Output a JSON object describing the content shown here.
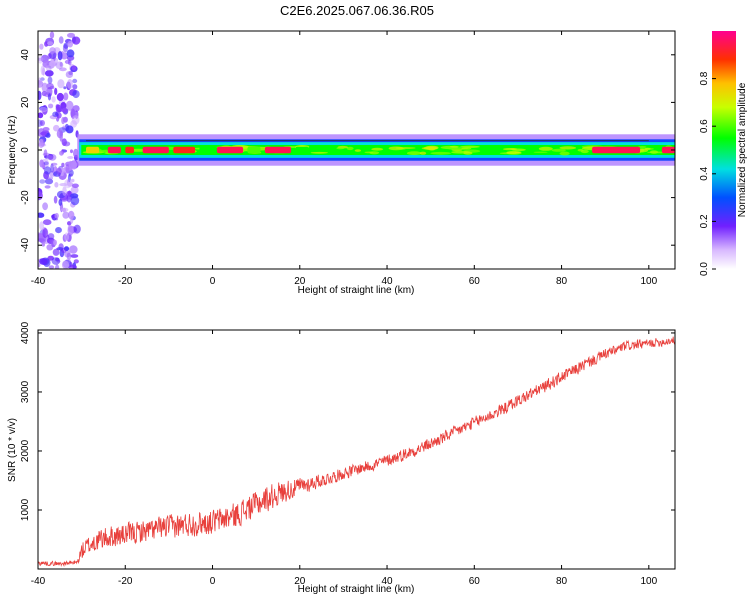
{
  "title": "C2E6.2025.067.06.36.R05",
  "chart_data": [
    {
      "type": "heatmap",
      "title": "C2E6.2025.067.06.36.R05",
      "xlabel": "Height of straight line (km)",
      "ylabel": "Frequency (Hz)",
      "xlim": [
        -40,
        106
      ],
      "ylim": [
        -50,
        50
      ],
      "xticks": [
        -40,
        -20,
        0,
        20,
        40,
        60,
        80,
        100
      ],
      "yticks": [
        -40,
        -20,
        0,
        20,
        40
      ],
      "noise_region_km": [
        -40,
        -31
      ],
      "band_center_hz": 0,
      "band_halfwidth_hz": 3,
      "band_segments": [
        {
          "x": [
            -29,
            -26
          ],
          "amplitude": 0.75
        },
        {
          "x": [
            -24,
            -21
          ],
          "amplitude": 0.95
        },
        {
          "x": [
            -20,
            -18
          ],
          "amplitude": 0.9
        },
        {
          "x": [
            -16,
            -10
          ],
          "amplitude": 0.95
        },
        {
          "x": [
            -9,
            -4
          ],
          "amplitude": 0.9
        },
        {
          "x": [
            -3,
            1
          ],
          "amplitude": 0.55
        },
        {
          "x": [
            1,
            7
          ],
          "amplitude": 0.95
        },
        {
          "x": [
            8,
            11
          ],
          "amplitude": 0.6
        },
        {
          "x": [
            12,
            18
          ],
          "amplitude": 0.95
        },
        {
          "x": [
            19,
            22
          ],
          "amplitude": 0.55
        },
        {
          "x": [
            87,
            98
          ],
          "amplitude": 0.95
        },
        {
          "x": [
            103,
            106
          ],
          "amplitude": 0.95
        }
      ],
      "colorbar": {
        "label": "Normalized spectral amplitude",
        "ticks": [
          0.0,
          0.2,
          0.4,
          0.6,
          0.8
        ],
        "tick_labels": [
          "0.0",
          "0.2",
          "0.4",
          "0.6",
          "0.8"
        ],
        "range": [
          0,
          1
        ]
      }
    },
    {
      "type": "line",
      "xlabel": "Height of straight line (km)",
      "ylabel": "SNR (10 * v/v)",
      "xlim": [
        -40,
        106
      ],
      "ylim": [
        0,
        4050
      ],
      "xticks": [
        -40,
        -20,
        0,
        20,
        40,
        60,
        80,
        100
      ],
      "yticks": [
        1000,
        2000,
        3000,
        4000
      ],
      "color": "#e8403c",
      "series": [
        {
          "name": "SNR",
          "x": [
            -40,
            -35,
            -31,
            -30,
            -28,
            -25,
            -20,
            -15,
            -10,
            -5,
            0,
            5,
            10,
            15,
            20,
            25,
            30,
            35,
            40,
            45,
            50,
            55,
            60,
            65,
            70,
            75,
            80,
            85,
            90,
            95,
            100,
            106
          ],
          "values": [
            100,
            90,
            110,
            300,
            420,
            520,
            580,
            650,
            720,
            760,
            800,
            900,
            1100,
            1280,
            1400,
            1500,
            1620,
            1730,
            1840,
            1970,
            2120,
            2300,
            2480,
            2650,
            2850,
            3050,
            3250,
            3450,
            3640,
            3780,
            3820,
            3880
          ],
          "noise_amplitude": [
            40,
            40,
            40,
            160,
            190,
            200,
            200,
            200,
            210,
            220,
            220,
            230,
            240,
            220,
            160,
            120,
            110,
            110,
            110,
            110,
            110,
            110,
            110,
            110,
            110,
            110,
            110,
            110,
            100,
            90,
            80,
            80
          ]
        }
      ]
    }
  ]
}
